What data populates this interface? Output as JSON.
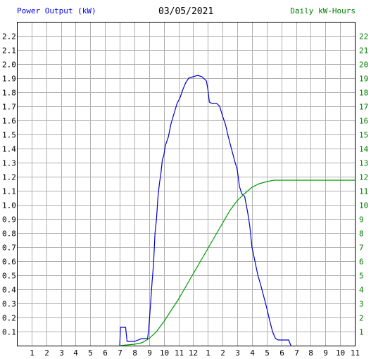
{
  "header": {
    "left_label": "Power Output (kW)",
    "date": "03/05/2021",
    "right_label": "Daily kW-Hours"
  },
  "colors": {
    "power": "#0000cc",
    "energy": "#009900",
    "grid": "#b0b0b0",
    "left_axis_text": "#000000",
    "right_axis_text": "#008000",
    "left_title": "#0000ff"
  },
  "chart_data": {
    "type": "line",
    "title": "03/05/2021",
    "xlabel": "",
    "ylabel": "Power Output (kW)",
    "y2label": "Daily kW-Hours",
    "grid": true,
    "x_domain": [
      0,
      23
    ],
    "x_ticks": [
      {
        "pos": 1,
        "label": "1"
      },
      {
        "pos": 2,
        "label": "2"
      },
      {
        "pos": 3,
        "label": "3"
      },
      {
        "pos": 4,
        "label": "4"
      },
      {
        "pos": 5,
        "label": "5"
      },
      {
        "pos": 6,
        "label": "6"
      },
      {
        "pos": 7,
        "label": "7"
      },
      {
        "pos": 8,
        "label": "8"
      },
      {
        "pos": 9,
        "label": "9"
      },
      {
        "pos": 10,
        "label": "10"
      },
      {
        "pos": 11,
        "label": "11"
      },
      {
        "pos": 12,
        "label": "12"
      },
      {
        "pos": 13,
        "label": "1"
      },
      {
        "pos": 14,
        "label": "2"
      },
      {
        "pos": 15,
        "label": "3"
      },
      {
        "pos": 16,
        "label": "4"
      },
      {
        "pos": 17,
        "label": "5"
      },
      {
        "pos": 18,
        "label": "6"
      },
      {
        "pos": 19,
        "label": "7"
      },
      {
        "pos": 20,
        "label": "8"
      },
      {
        "pos": 21,
        "label": "9"
      },
      {
        "pos": 22,
        "label": "10"
      },
      {
        "pos": 23,
        "label": "11"
      }
    ],
    "ylim": [
      0,
      2.3
    ],
    "y_ticks": [
      "0.1",
      "0.2",
      "0.3",
      "0.4",
      "0.5",
      "0.6",
      "0.7",
      "0.8",
      "0.9",
      "1.0",
      "1.1",
      "1.2",
      "1.3",
      "1.4",
      "1.5",
      "1.6",
      "1.7",
      "1.8",
      "1.9",
      "2.0",
      "2.1",
      "2.2"
    ],
    "y2lim": [
      0,
      23
    ],
    "y2_ticks": [
      "1",
      "2",
      "3",
      "4",
      "5",
      "6",
      "7",
      "8",
      "9",
      "10",
      "11",
      "12",
      "13",
      "14",
      "15",
      "16",
      "17",
      "18",
      "19",
      "20",
      "21",
      "22"
    ],
    "series": [
      {
        "name": "Power Output (kW)",
        "axis": "left",
        "color": "#0000cc",
        "points": [
          [
            7.0,
            0.0
          ],
          [
            7.05,
            0.13
          ],
          [
            7.4,
            0.13
          ],
          [
            7.5,
            0.03
          ],
          [
            8.0,
            0.03
          ],
          [
            8.5,
            0.05
          ],
          [
            8.9,
            0.05
          ],
          [
            9.0,
            0.15
          ],
          [
            9.1,
            0.3
          ],
          [
            9.2,
            0.45
          ],
          [
            9.3,
            0.58
          ],
          [
            9.4,
            0.8
          ],
          [
            9.5,
            0.9
          ],
          [
            9.6,
            1.05
          ],
          [
            9.7,
            1.15
          ],
          [
            9.8,
            1.22
          ],
          [
            9.9,
            1.32
          ],
          [
            10.0,
            1.35
          ],
          [
            10.1,
            1.42
          ],
          [
            10.3,
            1.48
          ],
          [
            10.5,
            1.58
          ],
          [
            10.7,
            1.65
          ],
          [
            10.9,
            1.72
          ],
          [
            11.1,
            1.76
          ],
          [
            11.3,
            1.82
          ],
          [
            11.5,
            1.87
          ],
          [
            11.7,
            1.9
          ],
          [
            12.0,
            1.91
          ],
          [
            12.3,
            1.92
          ],
          [
            12.6,
            1.91
          ],
          [
            12.9,
            1.88
          ],
          [
            13.0,
            1.82
          ],
          [
            13.1,
            1.73
          ],
          [
            13.3,
            1.72
          ],
          [
            13.6,
            1.72
          ],
          [
            13.8,
            1.7
          ],
          [
            14.0,
            1.63
          ],
          [
            14.2,
            1.57
          ],
          [
            14.4,
            1.48
          ],
          [
            14.6,
            1.4
          ],
          [
            14.8,
            1.32
          ],
          [
            15.0,
            1.25
          ],
          [
            15.15,
            1.13
          ],
          [
            15.3,
            1.08
          ],
          [
            15.5,
            1.06
          ],
          [
            15.7,
            0.95
          ],
          [
            15.85,
            0.85
          ],
          [
            16.0,
            0.7
          ],
          [
            16.2,
            0.6
          ],
          [
            16.4,
            0.5
          ],
          [
            16.6,
            0.43
          ],
          [
            16.8,
            0.35
          ],
          [
            17.0,
            0.27
          ],
          [
            17.2,
            0.18
          ],
          [
            17.4,
            0.1
          ],
          [
            17.6,
            0.05
          ],
          [
            17.8,
            0.04
          ],
          [
            18.5,
            0.04
          ],
          [
            18.65,
            0.0
          ]
        ]
      },
      {
        "name": "Daily kW-Hours",
        "axis": "right",
        "color": "#009900",
        "points": [
          [
            7.0,
            0.0
          ],
          [
            8.0,
            0.1
          ],
          [
            8.5,
            0.2
          ],
          [
            9.0,
            0.5
          ],
          [
            9.5,
            1.0
          ],
          [
            10.0,
            1.7
          ],
          [
            10.5,
            2.5
          ],
          [
            11.0,
            3.3
          ],
          [
            11.5,
            4.2
          ],
          [
            12.0,
            5.1
          ],
          [
            12.5,
            6.0
          ],
          [
            13.0,
            6.9
          ],
          [
            13.5,
            7.8
          ],
          [
            14.0,
            8.7
          ],
          [
            14.5,
            9.6
          ],
          [
            15.0,
            10.3
          ],
          [
            15.5,
            10.8
          ],
          [
            16.0,
            11.25
          ],
          [
            16.5,
            11.5
          ],
          [
            17.0,
            11.65
          ],
          [
            17.5,
            11.75
          ],
          [
            18.0,
            11.75
          ],
          [
            19.0,
            11.75
          ],
          [
            21.0,
            11.75
          ],
          [
            23.0,
            11.75
          ]
        ]
      }
    ]
  }
}
